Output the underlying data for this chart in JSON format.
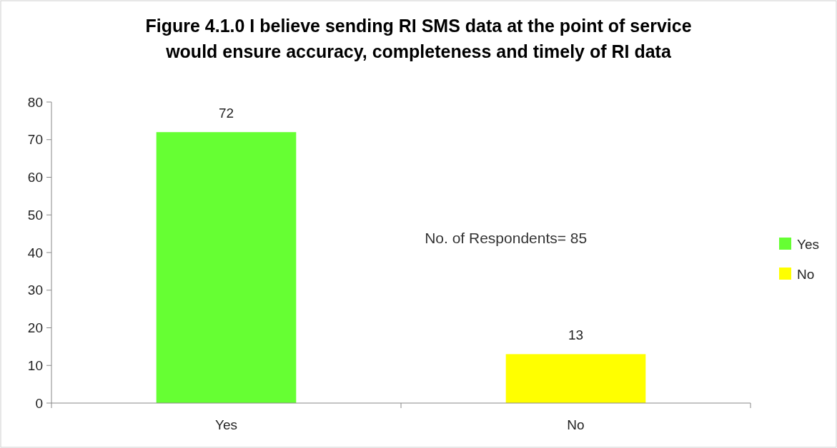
{
  "chart_data": {
    "type": "bar",
    "title": "Figure 4.1.0 I believe sending RI SMS data at the point of service would ensure accuracy, completeness and timely of RI data",
    "categories": [
      "Yes",
      "No"
    ],
    "series": [
      {
        "name": "Yes",
        "color": "#66ff33",
        "values": [
          72,
          null
        ]
      },
      {
        "name": "No",
        "color": "#ffff00",
        "values": [
          null,
          13
        ]
      }
    ],
    "ylim": [
      0,
      80
    ],
    "yticks": [
      0,
      10,
      20,
      30,
      40,
      50,
      60,
      70,
      80
    ],
    "data_labels": true,
    "legend": "right",
    "grid": false,
    "annotations": [
      "No. of Respondents= 85"
    ]
  }
}
